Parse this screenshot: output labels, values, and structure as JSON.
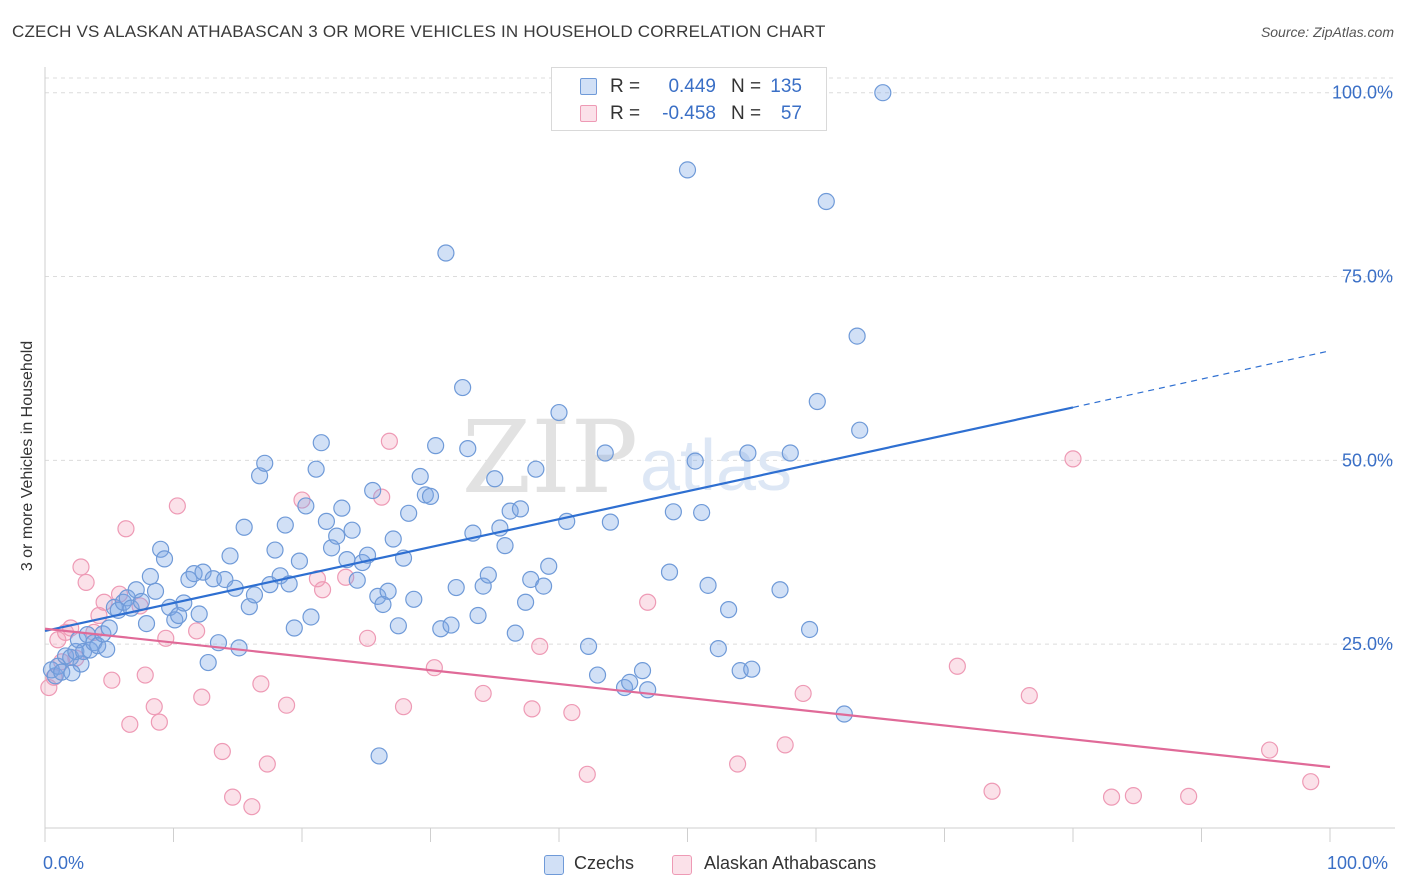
{
  "header": {
    "title": "CZECH VS ALASKAN ATHABASCAN 3 OR MORE VEHICLES IN HOUSEHOLD CORRELATION CHART",
    "source": "Source: ZipAtlas.com"
  },
  "watermark": {
    "part1": "ZIP",
    "part2": "atlas"
  },
  "legend": {
    "rows": [
      {
        "r_label": "R =",
        "r_value": "0.449",
        "n_label": "N =",
        "n_value": "135",
        "color": "#7ba7e6"
      },
      {
        "r_label": "R =",
        "r_value": "-0.458",
        "n_label": "N =",
        "n_value": "57",
        "color": "#f19bb6"
      }
    ]
  },
  "bottom_legend": {
    "czechs": "Czechs",
    "athabascans": "Alaskan Athabascans"
  },
  "colors": {
    "czech_fill": "rgba(123,167,230,0.35)",
    "czech_stroke": "#6f9ad8",
    "czech_line": "#2e6fd1",
    "ath_fill": "rgba(241,155,182,0.30)",
    "ath_stroke": "#ee9ab5",
    "ath_line": "#e06a98",
    "tick_text": "#3a6fc6"
  },
  "chart_data": {
    "type": "scatter",
    "title": "CZECH VS ALASKAN ATHABASCAN 3 OR MORE VEHICLES IN HOUSEHOLD CORRELATION CHART",
    "xlabel": "",
    "ylabel": "3 or more Vehicles in Household",
    "xlim": [
      0,
      100
    ],
    "ylim": [
      0,
      102
    ],
    "x_tick_labels": [
      "0.0%",
      "100.0%"
    ],
    "y_ticks": [
      25,
      50,
      75,
      100
    ],
    "y_tick_labels": [
      "25.0%",
      "50.0%",
      "75.0%",
      "100.0%"
    ],
    "grid": true,
    "legend_position": "top-center",
    "series": [
      {
        "name": "Czechs",
        "trend": {
          "x0": 0,
          "y0": 26.8,
          "x1": 80,
          "y1": 57.2,
          "dashed_to_x": 100,
          "dashed_to_y": 64.9
        },
        "points": [
          [
            0.5,
            21.5
          ],
          [
            0.8,
            20.7
          ],
          [
            1.0,
            22.0
          ],
          [
            1.3,
            21.2
          ],
          [
            1.6,
            23.4
          ],
          [
            2.0,
            23.2
          ],
          [
            2.4,
            24.0
          ],
          [
            2.6,
            25.6
          ],
          [
            2.8,
            22.3
          ],
          [
            3.0,
            24.0
          ],
          [
            3.3,
            26.3
          ],
          [
            3.5,
            24.2
          ],
          [
            3.8,
            25.2
          ],
          [
            4.1,
            24.8
          ],
          [
            4.5,
            26.4
          ],
          [
            4.8,
            24.3
          ],
          [
            5.0,
            27.2
          ],
          [
            5.4,
            30.0
          ],
          [
            5.7,
            29.6
          ],
          [
            6.1,
            30.7
          ],
          [
            6.4,
            31.3
          ],
          [
            6.7,
            29.9
          ],
          [
            7.1,
            32.4
          ],
          [
            7.5,
            30.8
          ],
          [
            7.9,
            27.8
          ],
          [
            8.2,
            34.2
          ],
          [
            8.6,
            32.2
          ],
          [
            9.0,
            37.9
          ],
          [
            9.3,
            36.6
          ],
          [
            9.7,
            30.0
          ],
          [
            10.1,
            28.3
          ],
          [
            10.4,
            28.9
          ],
          [
            10.8,
            30.6
          ],
          [
            11.2,
            33.8
          ],
          [
            11.6,
            34.6
          ],
          [
            12.0,
            29.1
          ],
          [
            12.3,
            34.8
          ],
          [
            12.7,
            22.5
          ],
          [
            13.1,
            33.9
          ],
          [
            13.5,
            25.2
          ],
          [
            14.0,
            33.8
          ],
          [
            14.4,
            37.0
          ],
          [
            14.8,
            32.6
          ],
          [
            15.1,
            24.5
          ],
          [
            15.5,
            40.9
          ],
          [
            15.9,
            30.1
          ],
          [
            16.3,
            31.7
          ],
          [
            16.7,
            47.9
          ],
          [
            17.1,
            49.6
          ],
          [
            17.5,
            33.1
          ],
          [
            17.9,
            37.8
          ],
          [
            18.3,
            34.3
          ],
          [
            18.7,
            41.2
          ],
          [
            19.0,
            33.2
          ],
          [
            19.4,
            27.2
          ],
          [
            19.8,
            36.3
          ],
          [
            20.3,
            43.8
          ],
          [
            20.7,
            28.7
          ],
          [
            21.1,
            48.8
          ],
          [
            21.5,
            52.4
          ],
          [
            21.9,
            41.7
          ],
          [
            22.3,
            38.1
          ],
          [
            22.7,
            39.7
          ],
          [
            23.1,
            43.5
          ],
          [
            23.5,
            36.5
          ],
          [
            23.9,
            40.5
          ],
          [
            24.3,
            33.7
          ],
          [
            24.7,
            36.1
          ],
          [
            25.1,
            37.1
          ],
          [
            25.5,
            45.9
          ],
          [
            25.9,
            31.5
          ],
          [
            26.3,
            30.4
          ],
          [
            26.7,
            32.2
          ],
          [
            27.1,
            39.3
          ],
          [
            27.5,
            27.5
          ],
          [
            27.9,
            36.7
          ],
          [
            28.3,
            42.8
          ],
          [
            28.7,
            31.1
          ],
          [
            29.2,
            47.8
          ],
          [
            29.6,
            45.3
          ],
          [
            30.0,
            45.1
          ],
          [
            30.4,
            52.0
          ],
          [
            30.8,
            27.1
          ],
          [
            31.2,
            78.2
          ],
          [
            31.6,
            27.6
          ],
          [
            32.0,
            32.7
          ],
          [
            32.5,
            59.9
          ],
          [
            32.9,
            51.6
          ],
          [
            33.3,
            40.1
          ],
          [
            33.7,
            28.9
          ],
          [
            34.1,
            32.9
          ],
          [
            34.5,
            34.4
          ],
          [
            35.0,
            47.5
          ],
          [
            35.4,
            40.8
          ],
          [
            35.8,
            38.4
          ],
          [
            36.2,
            43.1
          ],
          [
            36.6,
            26.5
          ],
          [
            37.0,
            43.4
          ],
          [
            37.4,
            30.7
          ],
          [
            37.8,
            33.8
          ],
          [
            38.2,
            48.8
          ],
          [
            38.8,
            32.9
          ],
          [
            39.2,
            35.6
          ],
          [
            40.0,
            56.5
          ],
          [
            40.6,
            41.7
          ],
          [
            42.3,
            24.7
          ],
          [
            43.0,
            20.8
          ],
          [
            43.6,
            51.0
          ],
          [
            44.0,
            41.6
          ],
          [
            45.1,
            19.1
          ],
          [
            45.5,
            19.8
          ],
          [
            46.5,
            21.4
          ],
          [
            46.9,
            18.8
          ],
          [
            48.6,
            34.8
          ],
          [
            48.9,
            43.0
          ],
          [
            50.0,
            89.5
          ],
          [
            50.6,
            49.9
          ],
          [
            51.1,
            42.9
          ],
          [
            51.6,
            33.0
          ],
          [
            52.4,
            24.4
          ],
          [
            53.2,
            29.7
          ],
          [
            54.1,
            21.4
          ],
          [
            54.7,
            51.0
          ],
          [
            55.0,
            21.6
          ],
          [
            57.2,
            32.4
          ],
          [
            58.0,
            51.0
          ],
          [
            59.5,
            27.0
          ],
          [
            60.1,
            58.0
          ],
          [
            60.8,
            85.2
          ],
          [
            62.2,
            15.5
          ],
          [
            63.2,
            66.9
          ],
          [
            63.4,
            54.1
          ],
          [
            65.2,
            100.0
          ],
          [
            2.1,
            21.1
          ],
          [
            26.0,
            9.8
          ]
        ]
      },
      {
        "name": "Alaskan Athabascans",
        "trend": {
          "x0": 0,
          "y0": 27.1,
          "x1": 100,
          "y1": 8.3
        },
        "points": [
          [
            0.3,
            19.1
          ],
          [
            0.7,
            20.5
          ],
          [
            1.0,
            25.6
          ],
          [
            1.3,
            22.6
          ],
          [
            1.6,
            26.6
          ],
          [
            2.0,
            27.2
          ],
          [
            2.4,
            23.1
          ],
          [
            2.8,
            35.5
          ],
          [
            3.2,
            33.4
          ],
          [
            3.8,
            26.6
          ],
          [
            4.2,
            28.9
          ],
          [
            4.6,
            30.7
          ],
          [
            5.2,
            20.1
          ],
          [
            5.8,
            31.8
          ],
          [
            6.3,
            40.7
          ],
          [
            6.6,
            14.1
          ],
          [
            7.4,
            30.2
          ],
          [
            7.8,
            20.8
          ],
          [
            8.5,
            16.5
          ],
          [
            8.9,
            14.4
          ],
          [
            9.4,
            25.8
          ],
          [
            10.3,
            43.8
          ],
          [
            11.8,
            26.8
          ],
          [
            12.2,
            17.8
          ],
          [
            13.8,
            10.4
          ],
          [
            14.6,
            4.2
          ],
          [
            16.1,
            2.9
          ],
          [
            16.8,
            19.6
          ],
          [
            17.3,
            8.7
          ],
          [
            18.8,
            16.7
          ],
          [
            20.0,
            44.6
          ],
          [
            21.2,
            33.9
          ],
          [
            21.6,
            32.4
          ],
          [
            23.4,
            34.1
          ],
          [
            25.1,
            25.8
          ],
          [
            26.2,
            45.0
          ],
          [
            26.8,
            52.6
          ],
          [
            27.9,
            16.5
          ],
          [
            30.3,
            21.8
          ],
          [
            34.1,
            18.3
          ],
          [
            37.9,
            16.2
          ],
          [
            38.5,
            24.7
          ],
          [
            41.0,
            15.7
          ],
          [
            42.2,
            7.3
          ],
          [
            46.9,
            30.7
          ],
          [
            53.9,
            8.7
          ],
          [
            57.6,
            11.3
          ],
          [
            59.0,
            18.3
          ],
          [
            71.0,
            22.0
          ],
          [
            73.7,
            5.0
          ],
          [
            76.6,
            18.0
          ],
          [
            80.0,
            50.2
          ],
          [
            83.0,
            4.2
          ],
          [
            84.7,
            4.4
          ],
          [
            89.0,
            4.3
          ],
          [
            95.3,
            10.6
          ],
          [
            98.5,
            6.3
          ]
        ]
      }
    ]
  }
}
